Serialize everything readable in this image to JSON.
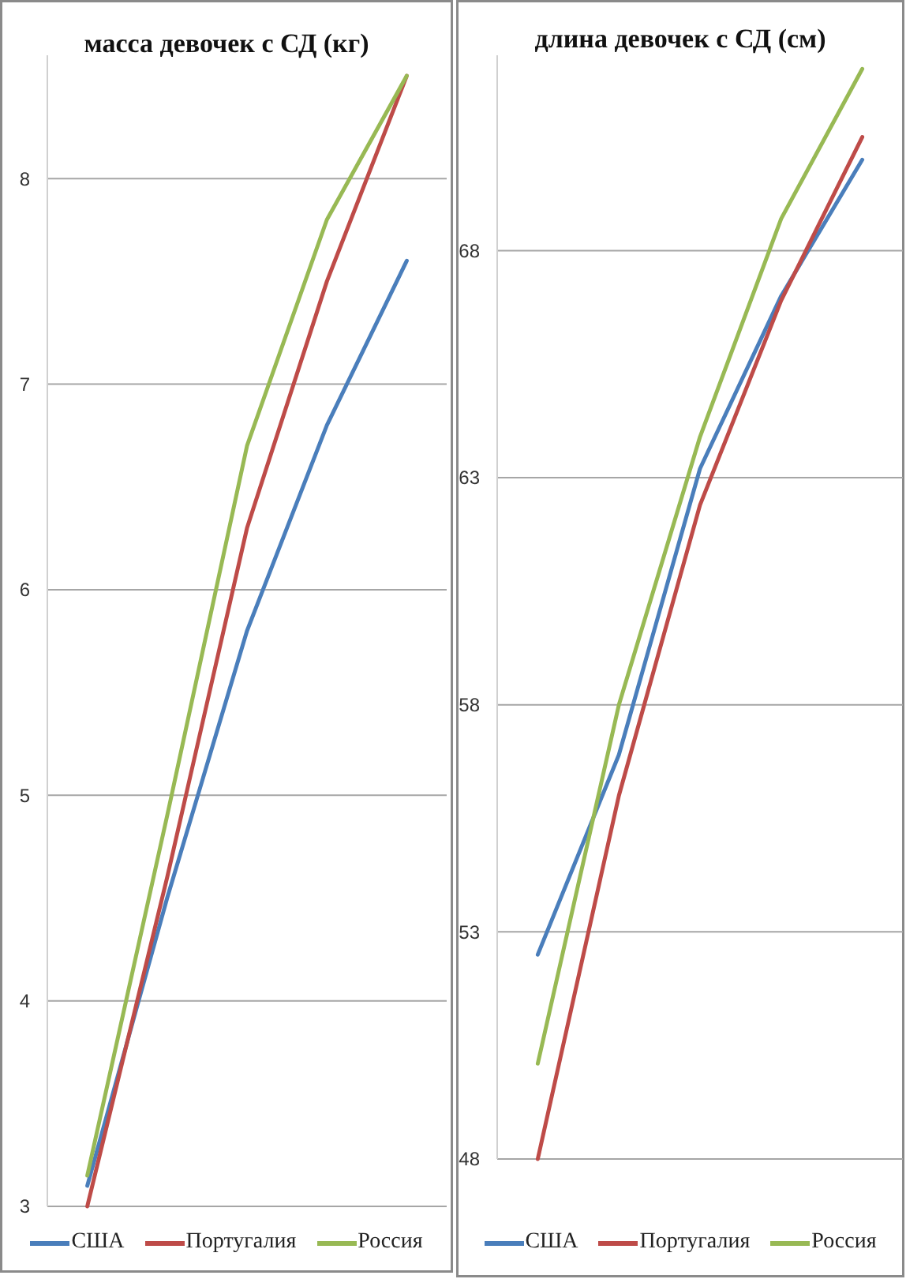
{
  "chart_data": [
    {
      "type": "line",
      "title": "масса девочек с СД (кг)",
      "categories": [
        null,
        null,
        null,
        null,
        null
      ],
      "series": [
        {
          "name": "США",
          "color": "#4a7ebb",
          "values": [
            3.1,
            4.5,
            5.8,
            6.8,
            7.6
          ]
        },
        {
          "name": "Португалия",
          "color": "#be4b48",
          "values": [
            3.0,
            4.6,
            6.3,
            7.5,
            8.5
          ]
        },
        {
          "name": "Россия",
          "color": "#98b954",
          "values": [
            3.15,
            4.9,
            6.7,
            7.8,
            8.5
          ]
        }
      ],
      "ylim": [
        3,
        8.6
      ],
      "yticks": [
        3,
        4,
        5,
        6,
        7,
        8
      ],
      "grid": "y",
      "legend": "bottom"
    },
    {
      "type": "line",
      "title": "длина девочек с СД (см)",
      "categories": [
        null,
        null,
        null,
        null,
        null
      ],
      "series": [
        {
          "name": "США",
          "color": "#4a7ebb",
          "values": [
            52.5,
            56.9,
            63.2,
            67.0,
            70.0
          ]
        },
        {
          "name": "Португалия",
          "color": "#be4b48",
          "values": [
            48.0,
            56.0,
            62.4,
            66.9,
            70.5
          ]
        },
        {
          "name": "Россия",
          "color": "#98b954",
          "values": [
            50.1,
            58.0,
            63.9,
            68.7,
            72.0
          ]
        }
      ],
      "ylim": [
        48,
        72.3
      ],
      "yticks": [
        48,
        53,
        58,
        63,
        68
      ],
      "grid": "y",
      "legend": "bottom"
    }
  ]
}
